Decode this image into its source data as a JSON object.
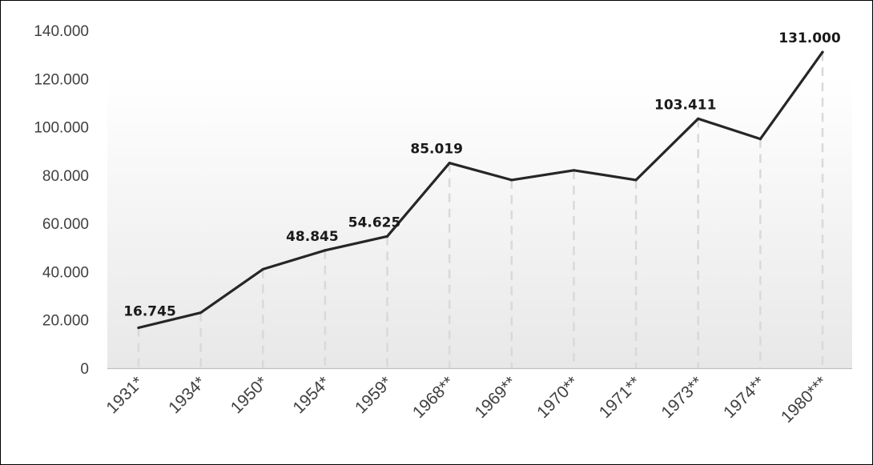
{
  "chart_data": {
    "type": "line",
    "categories": [
      "1931*",
      "1934*",
      "1950*",
      "1954*",
      "1959*",
      "1968**",
      "1969**",
      "1970**",
      "1971**",
      "1973**",
      "1974**",
      "1980***"
    ],
    "series": [
      {
        "values": [
          16745,
          23000,
          41000,
          48845,
          54625,
          85019,
          78000,
          82000,
          78000,
          103411,
          95000,
          131000
        ]
      }
    ],
    "data_labels": [
      {
        "index": 0,
        "text": "16.745"
      },
      {
        "index": 3,
        "text": "48.845"
      },
      {
        "index": 4,
        "text": "54.625"
      },
      {
        "index": 5,
        "text": "85.019"
      },
      {
        "index": 9,
        "text": "103.411"
      },
      {
        "index": 11,
        "text": "131.000"
      }
    ],
    "yticks": [
      0,
      20000,
      40000,
      60000,
      80000,
      100000,
      120000,
      140000
    ],
    "ytick_labels": [
      "0",
      "20.000",
      "40.000",
      "60.000",
      "80.000",
      "100.000",
      "120.000",
      "140.000"
    ],
    "ylim": [
      0,
      140000
    ],
    "title": "",
    "xlabel": "",
    "ylabel": "",
    "legend": "none",
    "grid": "vertical dashed drop lines",
    "colors": {
      "line": "#262626",
      "drop_line": "#d9d9d9",
      "axis": "#bfbfbf",
      "gradient_top": "#ffffff",
      "gradient_bottom": "#e8e8e8"
    }
  }
}
